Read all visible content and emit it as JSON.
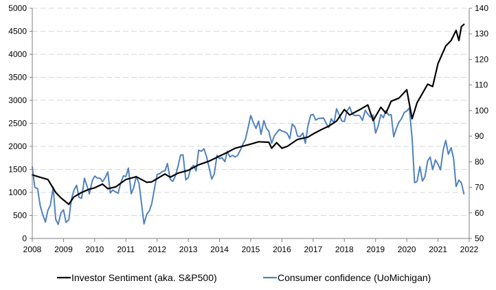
{
  "chart_data": {
    "type": "line",
    "legend_position": "bottom",
    "grid": true,
    "x_axis": {
      "range": [
        2008,
        2022
      ],
      "tick_labels": [
        "2008",
        "2009",
        "2010",
        "2011",
        "2012",
        "2013",
        "2014",
        "2015",
        "2016",
        "2017",
        "2018",
        "2019",
        "2020",
        "2021",
        "2022"
      ]
    },
    "y_axis_left": {
      "range": [
        0,
        5000
      ],
      "tick_labels": [
        "0",
        "500",
        "1000",
        "1500",
        "2000",
        "2500",
        "3000",
        "3500",
        "4000",
        "4500",
        "5000"
      ]
    },
    "y_axis_right": {
      "range": [
        50,
        140
      ],
      "tick_labels": [
        "50",
        "60",
        "70",
        "80",
        "90",
        "100",
        "110",
        "120",
        "130",
        "140"
      ]
    },
    "series": [
      {
        "name": "Investor Sentiment (aka. S&P500)",
        "axis": "left",
        "color": "#000000",
        "points": [
          [
            2008.0,
            1380
          ],
          [
            2008.25,
            1330
          ],
          [
            2008.5,
            1280
          ],
          [
            2008.75,
            1000
          ],
          [
            2008.92,
            880
          ],
          [
            2009.17,
            740
          ],
          [
            2009.33,
            900
          ],
          [
            2009.58,
            1000
          ],
          [
            2009.83,
            1070
          ],
          [
            2010.0,
            1100
          ],
          [
            2010.25,
            1180
          ],
          [
            2010.42,
            1080
          ],
          [
            2010.67,
            1120
          ],
          [
            2011.0,
            1280
          ],
          [
            2011.33,
            1340
          ],
          [
            2011.67,
            1220
          ],
          [
            2011.83,
            1230
          ],
          [
            2012.0,
            1300
          ],
          [
            2012.25,
            1400
          ],
          [
            2012.42,
            1330
          ],
          [
            2012.67,
            1420
          ],
          [
            2013.0,
            1480
          ],
          [
            2013.33,
            1600
          ],
          [
            2013.67,
            1680
          ],
          [
            2014.0,
            1790
          ],
          [
            2014.25,
            1870
          ],
          [
            2014.5,
            1960
          ],
          [
            2014.83,
            2020
          ],
          [
            2015.0,
            2050
          ],
          [
            2015.25,
            2100
          ],
          [
            2015.58,
            2090
          ],
          [
            2015.67,
            1960
          ],
          [
            2015.83,
            2080
          ],
          [
            2016.0,
            1960
          ],
          [
            2016.17,
            2000
          ],
          [
            2016.5,
            2150
          ],
          [
            2016.83,
            2200
          ],
          [
            2017.0,
            2270
          ],
          [
            2017.25,
            2360
          ],
          [
            2017.5,
            2440
          ],
          [
            2017.75,
            2550
          ],
          [
            2018.0,
            2800
          ],
          [
            2018.17,
            2680
          ],
          [
            2018.5,
            2800
          ],
          [
            2018.75,
            2900
          ],
          [
            2018.92,
            2560
          ],
          [
            2019.17,
            2850
          ],
          [
            2019.33,
            2720
          ],
          [
            2019.5,
            2980
          ],
          [
            2019.75,
            3050
          ],
          [
            2020.0,
            3230
          ],
          [
            2020.17,
            2600
          ],
          [
            2020.33,
            2950
          ],
          [
            2020.5,
            3150
          ],
          [
            2020.67,
            3350
          ],
          [
            2020.83,
            3300
          ],
          [
            2021.0,
            3800
          ],
          [
            2021.25,
            4180
          ],
          [
            2021.42,
            4300
          ],
          [
            2021.58,
            4520
          ],
          [
            2021.67,
            4300
          ],
          [
            2021.75,
            4600
          ],
          [
            2021.83,
            4650
          ]
        ]
      },
      {
        "name": "Consumer confidence (UoMichigan)",
        "axis": "right",
        "color": "#4f81bd",
        "points": [
          [
            2008.0,
            78.0
          ],
          [
            2008.08,
            70.0
          ],
          [
            2008.17,
            69.5
          ],
          [
            2008.25,
            63.0
          ],
          [
            2008.33,
            59.5
          ],
          [
            2008.42,
            56.4
          ],
          [
            2008.5,
            61.0
          ],
          [
            2008.58,
            63.0
          ],
          [
            2008.67,
            70.0
          ],
          [
            2008.75,
            57.5
          ],
          [
            2008.83,
            55.5
          ],
          [
            2008.92,
            60.0
          ],
          [
            2009.0,
            61.2
          ],
          [
            2009.08,
            56.3
          ],
          [
            2009.17,
            57.3
          ],
          [
            2009.25,
            65.1
          ],
          [
            2009.33,
            68.7
          ],
          [
            2009.42,
            70.8
          ],
          [
            2009.5,
            66.0
          ],
          [
            2009.58,
            65.7
          ],
          [
            2009.67,
            73.5
          ],
          [
            2009.75,
            70.6
          ],
          [
            2009.83,
            67.4
          ],
          [
            2009.92,
            72.5
          ],
          [
            2010.0,
            74.4
          ],
          [
            2010.08,
            73.6
          ],
          [
            2010.17,
            73.6
          ],
          [
            2010.25,
            72.2
          ],
          [
            2010.33,
            73.6
          ],
          [
            2010.42,
            76.0
          ],
          [
            2010.5,
            67.8
          ],
          [
            2010.58,
            68.9
          ],
          [
            2010.67,
            68.2
          ],
          [
            2010.75,
            67.7
          ],
          [
            2010.83,
            71.6
          ],
          [
            2010.92,
            74.5
          ],
          [
            2011.0,
            74.2
          ],
          [
            2011.08,
            77.5
          ],
          [
            2011.17,
            67.5
          ],
          [
            2011.25,
            69.8
          ],
          [
            2011.33,
            74.3
          ],
          [
            2011.42,
            71.5
          ],
          [
            2011.5,
            63.7
          ],
          [
            2011.58,
            55.7
          ],
          [
            2011.67,
            59.5
          ],
          [
            2011.75,
            60.8
          ],
          [
            2011.83,
            63.7
          ],
          [
            2011.92,
            69.9
          ],
          [
            2012.0,
            75.0
          ],
          [
            2012.08,
            75.3
          ],
          [
            2012.17,
            76.2
          ],
          [
            2012.25,
            76.4
          ],
          [
            2012.33,
            79.3
          ],
          [
            2012.42,
            73.2
          ],
          [
            2012.5,
            72.3
          ],
          [
            2012.58,
            74.3
          ],
          [
            2012.67,
            78.3
          ],
          [
            2012.75,
            82.6
          ],
          [
            2012.83,
            82.7
          ],
          [
            2012.92,
            72.9
          ],
          [
            2013.0,
            73.8
          ],
          [
            2013.08,
            77.6
          ],
          [
            2013.17,
            78.6
          ],
          [
            2013.25,
            76.4
          ],
          [
            2013.33,
            84.5
          ],
          [
            2013.42,
            84.1
          ],
          [
            2013.5,
            85.1
          ],
          [
            2013.58,
            82.1
          ],
          [
            2013.67,
            77.5
          ],
          [
            2013.75,
            73.2
          ],
          [
            2013.83,
            75.1
          ],
          [
            2013.92,
            82.5
          ],
          [
            2014.0,
            81.2
          ],
          [
            2014.08,
            81.6
          ],
          [
            2014.17,
            80.0
          ],
          [
            2014.25,
            84.1
          ],
          [
            2014.33,
            81.9
          ],
          [
            2014.42,
            82.5
          ],
          [
            2014.5,
            81.8
          ],
          [
            2014.58,
            82.5
          ],
          [
            2014.67,
            84.6
          ],
          [
            2014.75,
            86.9
          ],
          [
            2014.83,
            88.8
          ],
          [
            2014.92,
            93.6
          ],
          [
            2015.0,
            98.1
          ],
          [
            2015.08,
            95.4
          ],
          [
            2015.17,
            93.0
          ],
          [
            2015.25,
            95.9
          ],
          [
            2015.33,
            90.7
          ],
          [
            2015.42,
            96.1
          ],
          [
            2015.5,
            93.1
          ],
          [
            2015.58,
            91.9
          ],
          [
            2015.67,
            87.2
          ],
          [
            2015.75,
            90.0
          ],
          [
            2015.83,
            91.3
          ],
          [
            2015.92,
            92.6
          ],
          [
            2016.0,
            92.0
          ],
          [
            2016.08,
            91.7
          ],
          [
            2016.17,
            91.0
          ],
          [
            2016.25,
            89.0
          ],
          [
            2016.33,
            94.7
          ],
          [
            2016.42,
            93.5
          ],
          [
            2016.5,
            90.0
          ],
          [
            2016.58,
            89.8
          ],
          [
            2016.67,
            91.2
          ],
          [
            2016.75,
            87.2
          ],
          [
            2016.83,
            93.8
          ],
          [
            2016.92,
            98.2
          ],
          [
            2017.0,
            98.5
          ],
          [
            2017.08,
            96.3
          ],
          [
            2017.17,
            96.9
          ],
          [
            2017.25,
            97.0
          ],
          [
            2017.33,
            97.1
          ],
          [
            2017.42,
            95.0
          ],
          [
            2017.5,
            93.4
          ],
          [
            2017.58,
            96.8
          ],
          [
            2017.67,
            95.1
          ],
          [
            2017.75,
            100.7
          ],
          [
            2017.83,
            98.5
          ],
          [
            2017.92,
            95.9
          ],
          [
            2018.0,
            95.7
          ],
          [
            2018.08,
            99.7
          ],
          [
            2018.17,
            101.4
          ],
          [
            2018.25,
            98.8
          ],
          [
            2018.33,
            98.0
          ],
          [
            2018.42,
            98.2
          ],
          [
            2018.5,
            97.9
          ],
          [
            2018.58,
            96.2
          ],
          [
            2018.67,
            100.1
          ],
          [
            2018.75,
            98.6
          ],
          [
            2018.83,
            97.5
          ],
          [
            2018.92,
            98.3
          ],
          [
            2019.0,
            91.2
          ],
          [
            2019.08,
            93.8
          ],
          [
            2019.17,
            98.4
          ],
          [
            2019.25,
            97.2
          ],
          [
            2019.33,
            100.0
          ],
          [
            2019.42,
            98.2
          ],
          [
            2019.5,
            98.4
          ],
          [
            2019.58,
            89.8
          ],
          [
            2019.67,
            93.2
          ],
          [
            2019.75,
            95.5
          ],
          [
            2019.83,
            96.8
          ],
          [
            2019.92,
            99.3
          ],
          [
            2020.0,
            99.8
          ],
          [
            2020.08,
            101.0
          ],
          [
            2020.17,
            89.1
          ],
          [
            2020.25,
            71.8
          ],
          [
            2020.33,
            72.3
          ],
          [
            2020.42,
            78.1
          ],
          [
            2020.5,
            72.5
          ],
          [
            2020.58,
            74.1
          ],
          [
            2020.67,
            80.4
          ],
          [
            2020.75,
            81.8
          ],
          [
            2020.83,
            76.9
          ],
          [
            2020.92,
            80.7
          ],
          [
            2021.0,
            79.0
          ],
          [
            2021.08,
            76.8
          ],
          [
            2021.17,
            84.9
          ],
          [
            2021.25,
            88.3
          ],
          [
            2021.33,
            82.9
          ],
          [
            2021.42,
            85.5
          ],
          [
            2021.5,
            81.2
          ],
          [
            2021.58,
            70.3
          ],
          [
            2021.67,
            72.8
          ],
          [
            2021.75,
            71.7
          ],
          [
            2021.83,
            67.4
          ]
        ]
      }
    ]
  }
}
